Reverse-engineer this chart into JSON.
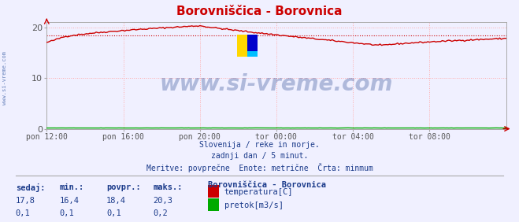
{
  "title": "Borovniščica - Borovnica",
  "bg_color": "#f0f0ff",
  "plot_bg_color": "#f0f0ff",
  "grid_color": "#ffaaaa",
  "xlim": [
    0,
    288
  ],
  "ylim": [
    0,
    21
  ],
  "yticks": [
    0,
    10,
    20
  ],
  "xtick_labels": [
    "pon 12:00",
    "pon 16:00",
    "pon 20:00",
    "tor 00:00",
    "tor 04:00",
    "tor 08:00"
  ],
  "xtick_positions": [
    0,
    48,
    96,
    144,
    192,
    240
  ],
  "temp_color": "#cc0000",
  "flow_color": "#00aa00",
  "avg_line_color": "#cc0000",
  "avg_line_value": 18.4,
  "watermark": "www.si-vreme.com",
  "watermark_color": "#1a3a8a",
  "info_text_color": "#1a3a8a",
  "info_line1": "Slovenija / reke in morje.",
  "info_line2": "zadnji dan / 5 minut.",
  "info_line3": "Meritve: povprečne  Enote: metrične  Črta: minmum",
  "legend_title": "Borovniščica - Borovnica",
  "stats_headers": [
    "sedaj:",
    "min.:",
    "povpr.:",
    "maks.:"
  ],
  "stats_temp": [
    "17,8",
    "16,4",
    "18,4",
    "20,3"
  ],
  "stats_flow": [
    "0,1",
    "0,1",
    "0,1",
    "0,2"
  ],
  "legend_temp": "temperatura[C]",
  "legend_flow": "pretok[m3/s]",
  "title_color": "#cc0000",
  "title_fontsize": 11,
  "axis_label_color": "#555555",
  "spine_color": "#aaaaaa",
  "sidebar_text": "www.si-vreme.com",
  "sidebar_color": "#4466aa"
}
